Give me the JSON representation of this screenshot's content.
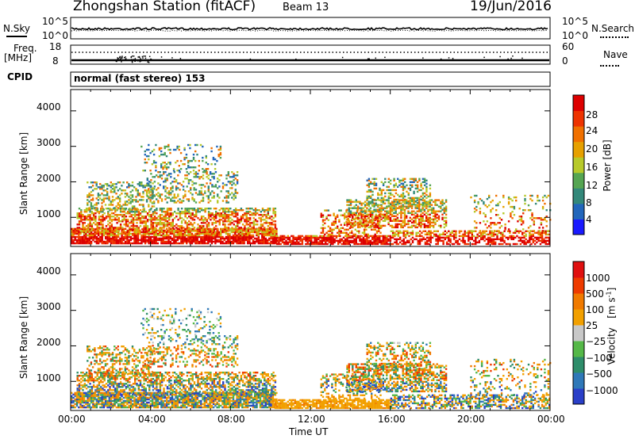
{
  "header": {
    "station": "Zhongshan Station (fitACF)",
    "beam": "Beam 13",
    "date": "19/Jun/2016"
  },
  "summary_panels": {
    "nsky": {
      "label": "N.Sky",
      "ticks": [
        "10^5",
        "10^0"
      ]
    },
    "nsearch": {
      "label": "N.Search",
      "ticks": [
        "10^5",
        "10^0"
      ]
    },
    "freq": {
      "label": "Freq.",
      "unit": "[MHz]",
      "ticks": [
        "18",
        "8"
      ]
    },
    "nave": {
      "label": "Nave",
      "ticks": [
        "60",
        "0"
      ]
    },
    "cpid": {
      "label": "CPID",
      "value": "normal (fast stereo) 153"
    }
  },
  "xaxis": {
    "label": "Time UT"
  },
  "chart_data": [
    {
      "type": "heatmap",
      "panel": "power",
      "ylabel": "Slant Range [km]",
      "yticks": [
        1000,
        2000,
        3000,
        4000
      ],
      "ylim": [
        180,
        4600
      ],
      "xticks": [
        "00:00",
        "04:00",
        "08:00",
        "12:00",
        "16:00",
        "20:00",
        "00:00"
      ],
      "xlim": [
        0,
        24
      ],
      "colorbar": {
        "label": "Power [dB]",
        "ticks": [
          "28",
          "24",
          "20",
          "16",
          "12",
          "8",
          "4"
        ],
        "colors": [
          "#1a1aff",
          "#2266bb",
          "#33887a",
          "#55a552",
          "#b7c92a",
          "#e6a000",
          "#f07000",
          "#ee3300",
          "#dd0000"
        ]
      }
    },
    {
      "type": "heatmap",
      "panel": "velocity",
      "ylabel": "Slant Range [km]",
      "yticks": [
        1000,
        2000,
        3000,
        4000
      ],
      "ylim": [
        180,
        4600
      ],
      "xticks": [
        "00:00",
        "04:00",
        "08:00",
        "12:00",
        "16:00",
        "20:00",
        "00:00"
      ],
      "xlim": [
        0,
        24
      ],
      "colorbar": {
        "label": "Velocity",
        "unit_base": "[m s",
        "unit_exp": "-1",
        "ticks": [
          "1000",
          "500",
          "100",
          "25",
          "−25",
          "−100",
          "−500",
          "−1000"
        ],
        "colors": [
          "#2a3fc8",
          "#2f78b8",
          "#2e8d6a",
          "#55b848",
          "#c8c8c8",
          "#f2a000",
          "#f07a00",
          "#ee3b00",
          "#e01010"
        ]
      }
    }
  ]
}
